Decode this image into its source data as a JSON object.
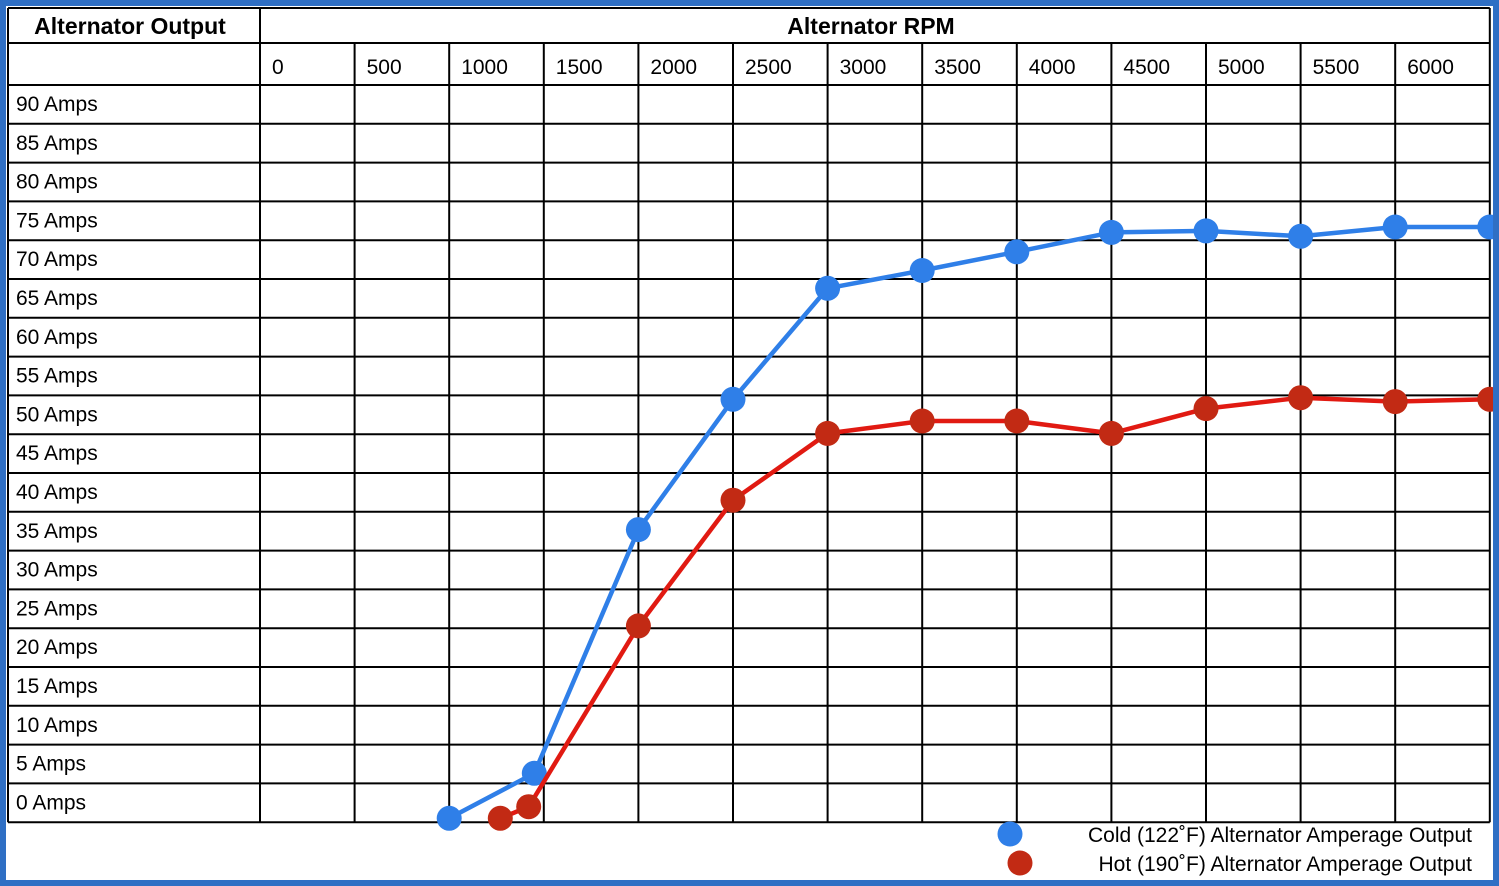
{
  "header": {
    "row_label": "Alternator Output",
    "column_label": "Alternator RPM"
  },
  "chart_data": {
    "type": "line",
    "title": "",
    "xlabel": "Alternator RPM",
    "ylabel": "Alternator Output",
    "x_ticks": [
      "0",
      "500",
      "1000",
      "1500",
      "2000",
      "2500",
      "3000",
      "3500",
      "4000",
      "4500",
      "5000",
      "5500",
      "6000"
    ],
    "y_ticks": [
      "90 Amps",
      "85 Amps",
      "80 Amps",
      "75 Amps",
      "70 Amps",
      "65 Amps",
      "60 Amps",
      "55 Amps",
      "50 Amps",
      "45 Amps",
      "40 Amps",
      "35 Amps",
      "30 Amps",
      "25 Amps",
      "20 Amps",
      "15 Amps",
      "10 Amps",
      "5 Amps",
      "0 Amps"
    ],
    "xlim": [
      0,
      6500
    ],
    "ylim": [
      -2.5,
      92.5
    ],
    "grid": true,
    "legend_position": "bottom-right",
    "series": [
      {
        "name": "Cold (122˚F) Alternator Amperage Output",
        "color": "#2f7fe8",
        "line_color": "#2f7fe8",
        "x": [
          1000,
          1450,
          2000,
          2500,
          3000,
          3500,
          4000,
          4500,
          5000,
          5500,
          6000,
          6500
        ],
        "y": [
          -2,
          3.8,
          35.2,
          52,
          66.3,
          68.6,
          71,
          73.5,
          73.7,
          73,
          74.2,
          74.2
        ]
      },
      {
        "name": "Hot (190˚F) Alternator Amperage Output",
        "color": "#c22a14",
        "line_color": "#e11a12",
        "x": [
          1270,
          1420,
          2000,
          2500,
          3000,
          3500,
          4000,
          4500,
          5000,
          5500,
          6000,
          6500
        ],
        "y": [
          -2,
          -0.5,
          22.8,
          39,
          47.6,
          49.2,
          49.2,
          47.6,
          50.8,
          52.2,
          51.7,
          52
        ]
      }
    ]
  }
}
